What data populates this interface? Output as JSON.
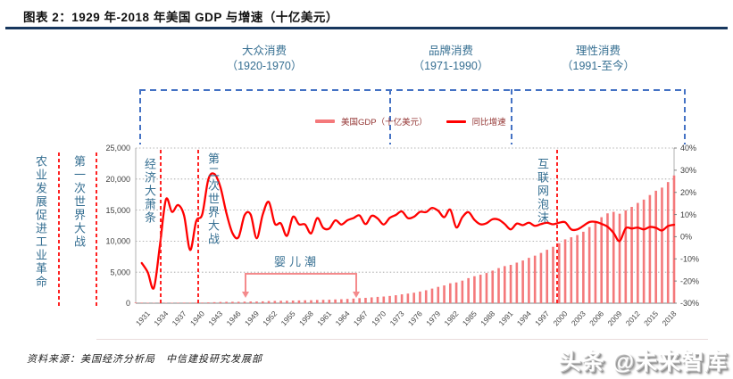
{
  "header": {
    "title": "图表 2：1929 年-2018 年美国 GDP 与增速（十亿美元）"
  },
  "stages": [
    {
      "name": "大众消费",
      "period": "（1920-1970）"
    },
    {
      "name": "品牌消费",
      "period": "（1971-1990）"
    },
    {
      "name": "理性消费",
      "period": "（1991-至今）"
    }
  ],
  "legend": [
    {
      "label": "美国GDP（十亿美元）",
      "color": "#F4797B"
    },
    {
      "label": "同比增速",
      "color": "#FF0000"
    }
  ],
  "annotations": {
    "agriculture": "农业发展促进工业革命",
    "ww1": "第一次世界大战",
    "great_depression": "经济大萧条",
    "ww2": "第二次世界大战",
    "baby_boom": "婴儿潮",
    "internet_bubble": "互联网泡沫"
  },
  "chart_data": {
    "type": "combo",
    "title": "1929-2018 美国 GDP 与增速（十亿美元）",
    "x_range": [
      1929,
      2018
    ],
    "x_step": 1,
    "x_tick_labels": [
      "1931",
      "1934",
      "1937",
      "1940",
      "1943",
      "1946",
      "1949",
      "1952",
      "1955",
      "1958",
      "1961",
      "1964",
      "1967",
      "1970",
      "1973",
      "1976",
      "1979",
      "1982",
      "1985",
      "1988",
      "1991",
      "1994",
      "1997",
      "2000",
      "2003",
      "2006",
      "2009",
      "2012",
      "2015",
      "2018"
    ],
    "y_left": {
      "min": 0,
      "max": 25000,
      "tick_step": 5000,
      "labels": [
        "25,000",
        "20,000",
        "15,000",
        "10,000",
        "5,000",
        "0"
      ]
    },
    "y_right": {
      "min": -30,
      "max": 40,
      "tick_step": 10,
      "labels": [
        "40%",
        "30%",
        "20%",
        "10%",
        "0%",
        "-10%",
        "-20%",
        "-30%"
      ]
    },
    "grid": "horizontal-dotted",
    "legend_position": "top-center",
    "series": [
      {
        "name": "美国GDP（十亿美元）",
        "type": "bar",
        "axis": "left",
        "color": "#F4797B",
        "values": [
          104.6,
          92.2,
          77.4,
          59.5,
          57.2,
          66.8,
          74.3,
          84.9,
          93.0,
          87.4,
          93.5,
          102.9,
          129.4,
          166.0,
          203.1,
          224.6,
          228.2,
          227.8,
          249.9,
          274.8,
          272.8,
          300.2,
          347.3,
          367.7,
          389.7,
          391.1,
          426.2,
          450.1,
          474.9,
          482.0,
          522.5,
          543.3,
          563.3,
          605.1,
          638.6,
          685.8,
          743.7,
          815.0,
          861.7,
          942.5,
          1019.9,
          1075.9,
          1167.8,
          1282.4,
          1428.5,
          1548.8,
          1688.9,
          1877.6,
          2086.0,
          2356.6,
          2632.1,
          2862.5,
          3211.0,
          3345.0,
          3638.1,
          4040.7,
          4346.7,
          4590.2,
          4870.2,
          5252.6,
          5657.7,
          5979.6,
          6174.1,
          6539.3,
          6878.7,
          7308.8,
          7664.1,
          8100.2,
          8608.5,
          9089.2,
          9660.6,
          10284.8,
          10621.8,
          10977.5,
          11510.7,
          12274.9,
          13093.7,
          13855.9,
          14477.6,
          14718.6,
          14418.7,
          14964.4,
          15517.9,
          16155.3,
          16691.5,
          17427.6,
          18120.7,
          18624.5,
          19519.4,
          20580.2
        ]
      },
      {
        "name": "同比增速",
        "type": "line",
        "axis": "right",
        "color": "#FF0000",
        "unit": "%",
        "values": [
          null,
          -11.9,
          -16.1,
          -23.1,
          -3.9,
          16.8,
          11.2,
          14.3,
          9.5,
          -6.0,
          7.0,
          10.1,
          25.8,
          28.3,
          22.4,
          10.6,
          1.6,
          -0.2,
          9.7,
          10.0,
          -0.7,
          10.0,
          15.7,
          5.9,
          6.0,
          0.4,
          9.0,
          5.6,
          5.5,
          1.5,
          8.4,
          4.0,
          3.7,
          7.4,
          5.5,
          7.4,
          8.4,
          9.6,
          5.7,
          9.4,
          8.2,
          5.5,
          8.5,
          9.8,
          11.4,
          8.4,
          9.0,
          11.2,
          11.1,
          13.0,
          11.7,
          8.8,
          12.2,
          4.2,
          8.8,
          11.1,
          7.6,
          5.6,
          6.1,
          7.9,
          7.7,
          5.7,
          3.3,
          5.9,
          5.2,
          6.3,
          4.9,
          5.7,
          6.3,
          5.6,
          6.3,
          6.5,
          3.3,
          3.3,
          4.9,
          6.6,
          6.7,
          5.8,
          4.5,
          1.7,
          -2.0,
          3.8,
          3.7,
          4.1,
          3.3,
          4.4,
          4.0,
          2.8,
          4.8,
          5.4
        ]
      }
    ]
  },
  "footer": {
    "source": "资料来源：美国经济分析局　中信建投研究发展部",
    "watermark": "头条 @未来智库"
  }
}
